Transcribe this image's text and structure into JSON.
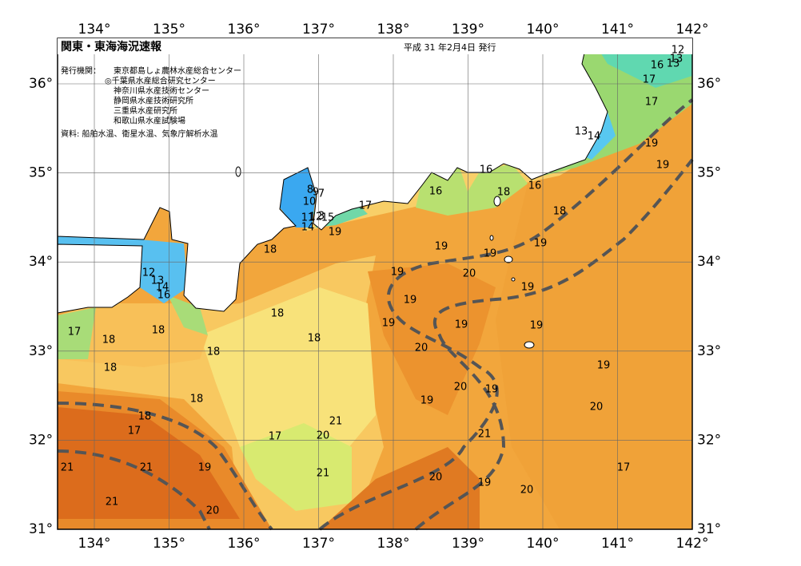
{
  "header": {
    "title": "関東・東海海況速報",
    "date": "平成 31 年2月4日 発行",
    "issuer_label": "発行機関：",
    "issuers": [
      "東京都島しょ農林水産総合センター",
      "◎千葉県水産総合研究センター",
      "神奈川県水産技術センター",
      "静岡県水産技術研究所",
      "三重県水産研究所",
      "和歌山県水産試験場"
    ],
    "source": "資料: 船舶水温、衛星水温、気象庁解析水温"
  },
  "axes": {
    "lon_ticks": [
      {
        "value": 134,
        "label": "134°"
      },
      {
        "value": 135,
        "label": "135°"
      },
      {
        "value": 136,
        "label": "136°"
      },
      {
        "value": 137,
        "label": "137°"
      },
      {
        "value": 138,
        "label": "138°"
      },
      {
        "value": 139,
        "label": "139°"
      },
      {
        "value": 140,
        "label": "140°"
      },
      {
        "value": 141,
        "label": "141°"
      },
      {
        "value": 142,
        "label": "142°"
      }
    ],
    "lat_ticks": [
      {
        "value": 31,
        "label": "31°"
      },
      {
        "value": 32,
        "label": "32°"
      },
      {
        "value": 33,
        "label": "33°"
      },
      {
        "value": 34,
        "label": "34°"
      },
      {
        "value": 35,
        "label": "35°"
      },
      {
        "value": 36,
        "label": "36°"
      }
    ]
  },
  "contour_labels": [
    "12",
    "13",
    "16",
    "13",
    "17",
    "17",
    "13",
    "14",
    "19",
    "19",
    "16",
    "16",
    "18",
    "16",
    "18",
    "8",
    "9",
    "7",
    "10",
    "11",
    "12",
    "3",
    "15",
    "14",
    "17",
    "19",
    "18",
    "19",
    "19",
    "19",
    "19",
    "20",
    "19",
    "12",
    "13",
    "14",
    "16",
    "19",
    "19",
    "19",
    "19",
    "18",
    "18",
    "17",
    "18",
    "18",
    "18",
    "20",
    "19",
    "18",
    "20",
    "19",
    "18",
    "19",
    "20",
    "18",
    "21",
    "17",
    "17",
    "20",
    "21",
    "21",
    "21",
    "19",
    "17",
    "21",
    "20",
    "19",
    "20",
    "21",
    "20"
  ]
}
